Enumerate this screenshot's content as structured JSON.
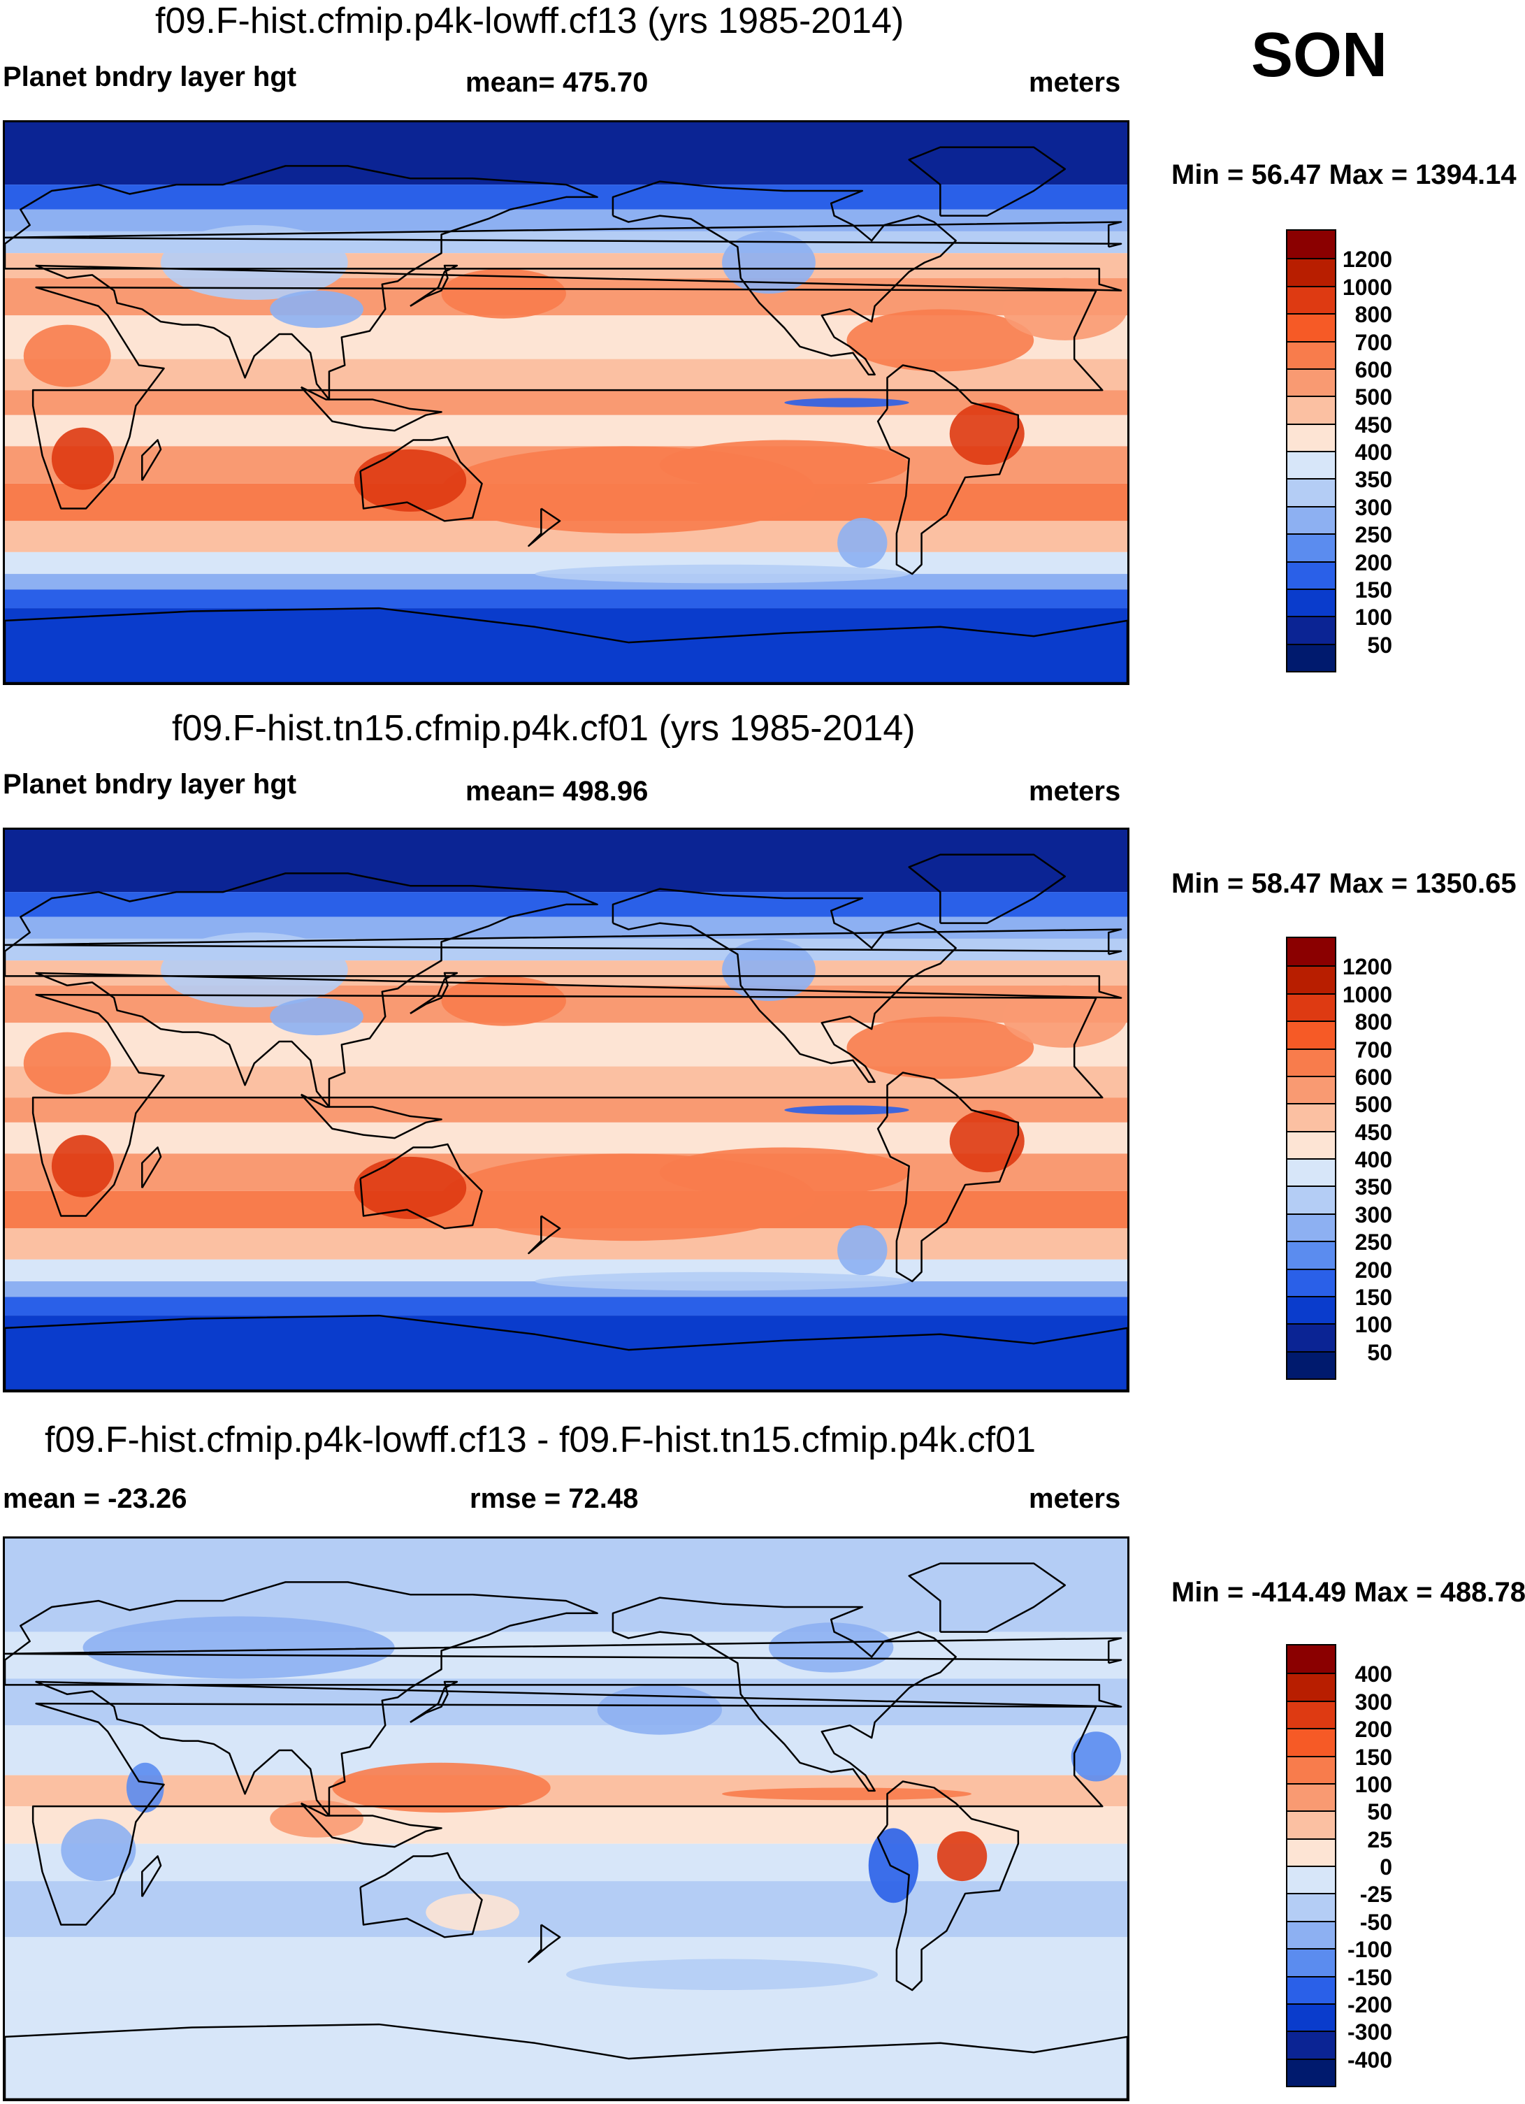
{
  "season": "SON",
  "panels": [
    {
      "title": "f09.F-hist.cfmip.p4k-lowff.cf13 (yrs 1985-2014)",
      "left_label": "Planet bndry layer hgt",
      "center_label": "mean= 475.70",
      "right_label": "meters",
      "minmax": "Min =  56.47 Max = 1394.14",
      "map_name": "pblh-map-lowff",
      "levels": [
        "1200",
        "1000",
        "800",
        "700",
        "600",
        "500",
        "450",
        "400",
        "350",
        "300",
        "250",
        "200",
        "150",
        "100",
        "50"
      ]
    },
    {
      "title": "f09.F-hist.tn15.cfmip.p4k.cf01 (yrs 1985-2014)",
      "left_label": "Planet bndry layer hgt",
      "center_label": "mean= 498.96",
      "right_label": "meters",
      "minmax": "Min =  58.47 Max = 1350.65",
      "map_name": "pblh-map-tn15",
      "levels": [
        "1200",
        "1000",
        "800",
        "700",
        "600",
        "500",
        "450",
        "400",
        "350",
        "300",
        "250",
        "200",
        "150",
        "100",
        "50"
      ]
    },
    {
      "title": "f09.F-hist.cfmip.p4k-lowff.cf13 - f09.F-hist.tn15.cfmip.p4k.cf01",
      "left_label": "mean = -23.26",
      "center_label": "rmse =  72.48",
      "right_label": "meters",
      "minmax": "Min = -414.49 Max = 488.78",
      "map_name": "pblh-difference-map",
      "levels": [
        "400",
        "300",
        "200",
        "150",
        "100",
        "50",
        "25",
        "0",
        "-25",
        "-50",
        "-100",
        "-150",
        "-200",
        "-300",
        "-400"
      ]
    }
  ],
  "colors": {
    "scale": [
      "#8b0000",
      "#b81e00",
      "#de3a12",
      "#f65a26",
      "#f87c4c",
      "#f99a72",
      "#fbc0a2",
      "#fde4d4",
      "#d7e6f9",
      "#b4cdf5",
      "#8db0f2",
      "#5b8cef",
      "#2a60e8",
      "#0a3ccc",
      "#0b2494",
      "#001a6e"
    ]
  }
}
